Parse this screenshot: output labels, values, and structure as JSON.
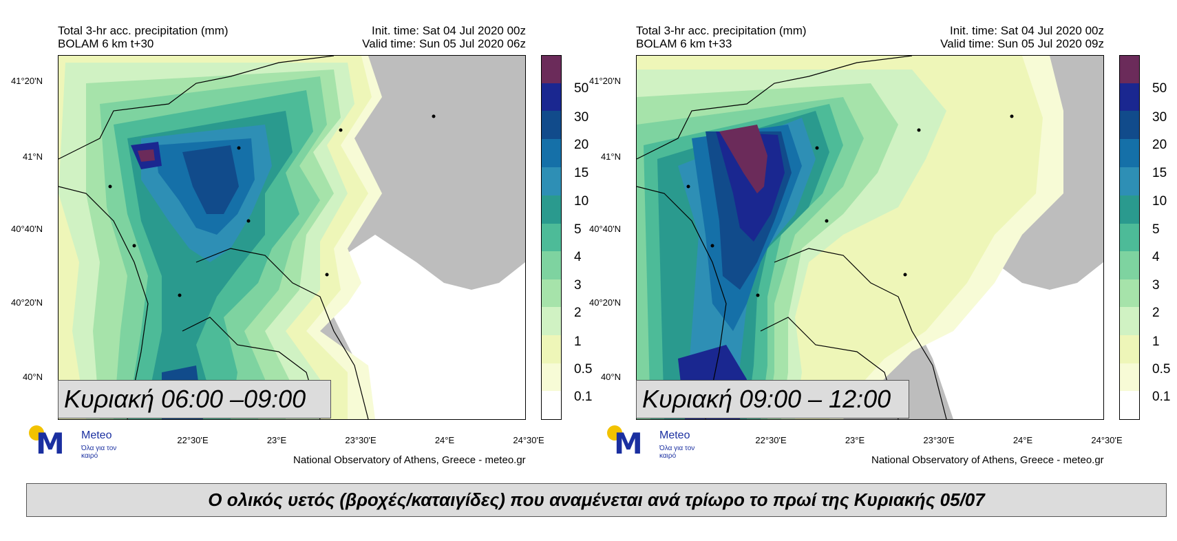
{
  "panels": [
    {
      "title_left": [
        "Total 3-hr acc. precipitation (mm)",
        "BOLAM 6 km t+30"
      ],
      "title_right": [
        "Init. time: Sat 04 Jul 2020 00z",
        "Valid time: Sun 05 Jul 2020 06z"
      ],
      "time_label": "Κυριακή 06:00 –09:00"
    },
    {
      "title_left": [
        "Total 3-hr acc. precipitation (mm)",
        "BOLAM 6 km t+33"
      ],
      "title_right": [
        "Init. time: Sat 04 Jul 2020 00z",
        "Valid time: Sun 05 Jul 2020 09z"
      ],
      "time_label": "Κυριακή 09:00 – 12:00"
    }
  ],
  "lat_labels": [
    "41°20'N",
    "41°N",
    "40°40'N",
    "40°20'N",
    "40°N"
  ],
  "lon_labels": [
    "22°30'E",
    "23°E",
    "23°30'E",
    "24°E",
    "24°30'E"
  ],
  "colorbar_labels": [
    "50",
    "30",
    "20",
    "15",
    "10",
    "5",
    "4",
    "3",
    "2",
    "1",
    "0.5",
    "0.1"
  ],
  "colorbar_colors": [
    "#6b2b5a",
    "#1a2790",
    "#114b8b",
    "#1570a8",
    "#2e8fb5",
    "#2a9a8e",
    "#4dbb98",
    "#7ed3a0",
    "#a6e3aa",
    "#d0f2c3",
    "#eef6b8",
    "#f7fbd6",
    "#ffffff"
  ],
  "credit": "National Observatory of Athens, Greece - meteo.gr",
  "logo": {
    "name": "Meteo",
    "slogan": "Όλα για τον καιρό"
  },
  "banner": "Ο ολικός υετός (βροχές/καταιγίδες) που αναμένεται ανά τρίωρο το πρωί της Κυριακής 05/07"
}
